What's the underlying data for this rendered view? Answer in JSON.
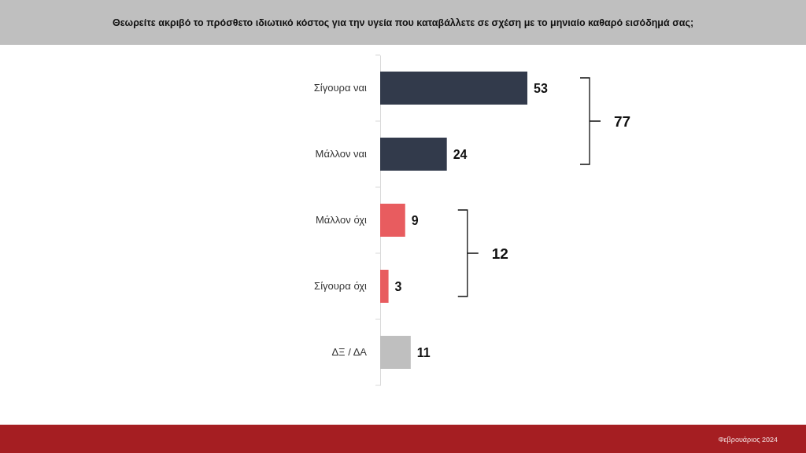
{
  "chart_data": {
    "type": "bar",
    "orientation": "horizontal",
    "title": "Θεωρείτε ακριβό το πρόσθετο ιδιωτικό κόστος για την υγεία που καταβάλλετε σε σχέση με το μηνιαίο καθαρό εισόδημά σας;",
    "categories": [
      "Σίγουρα ναι",
      "Μάλλον ναι",
      "Μάλλον όχι",
      "Σίγουρα όχι",
      "ΔΞ / ΔΑ"
    ],
    "values": [
      53,
      24,
      9,
      3,
      11
    ],
    "colors": [
      "#323a4b",
      "#323a4b",
      "#e85c5f",
      "#e85c5f",
      "#bfbfbf"
    ],
    "data_labels": true,
    "annotations": [
      "77",
      "12",
      "Φεβρουάριος 2024"
    ]
  }
}
